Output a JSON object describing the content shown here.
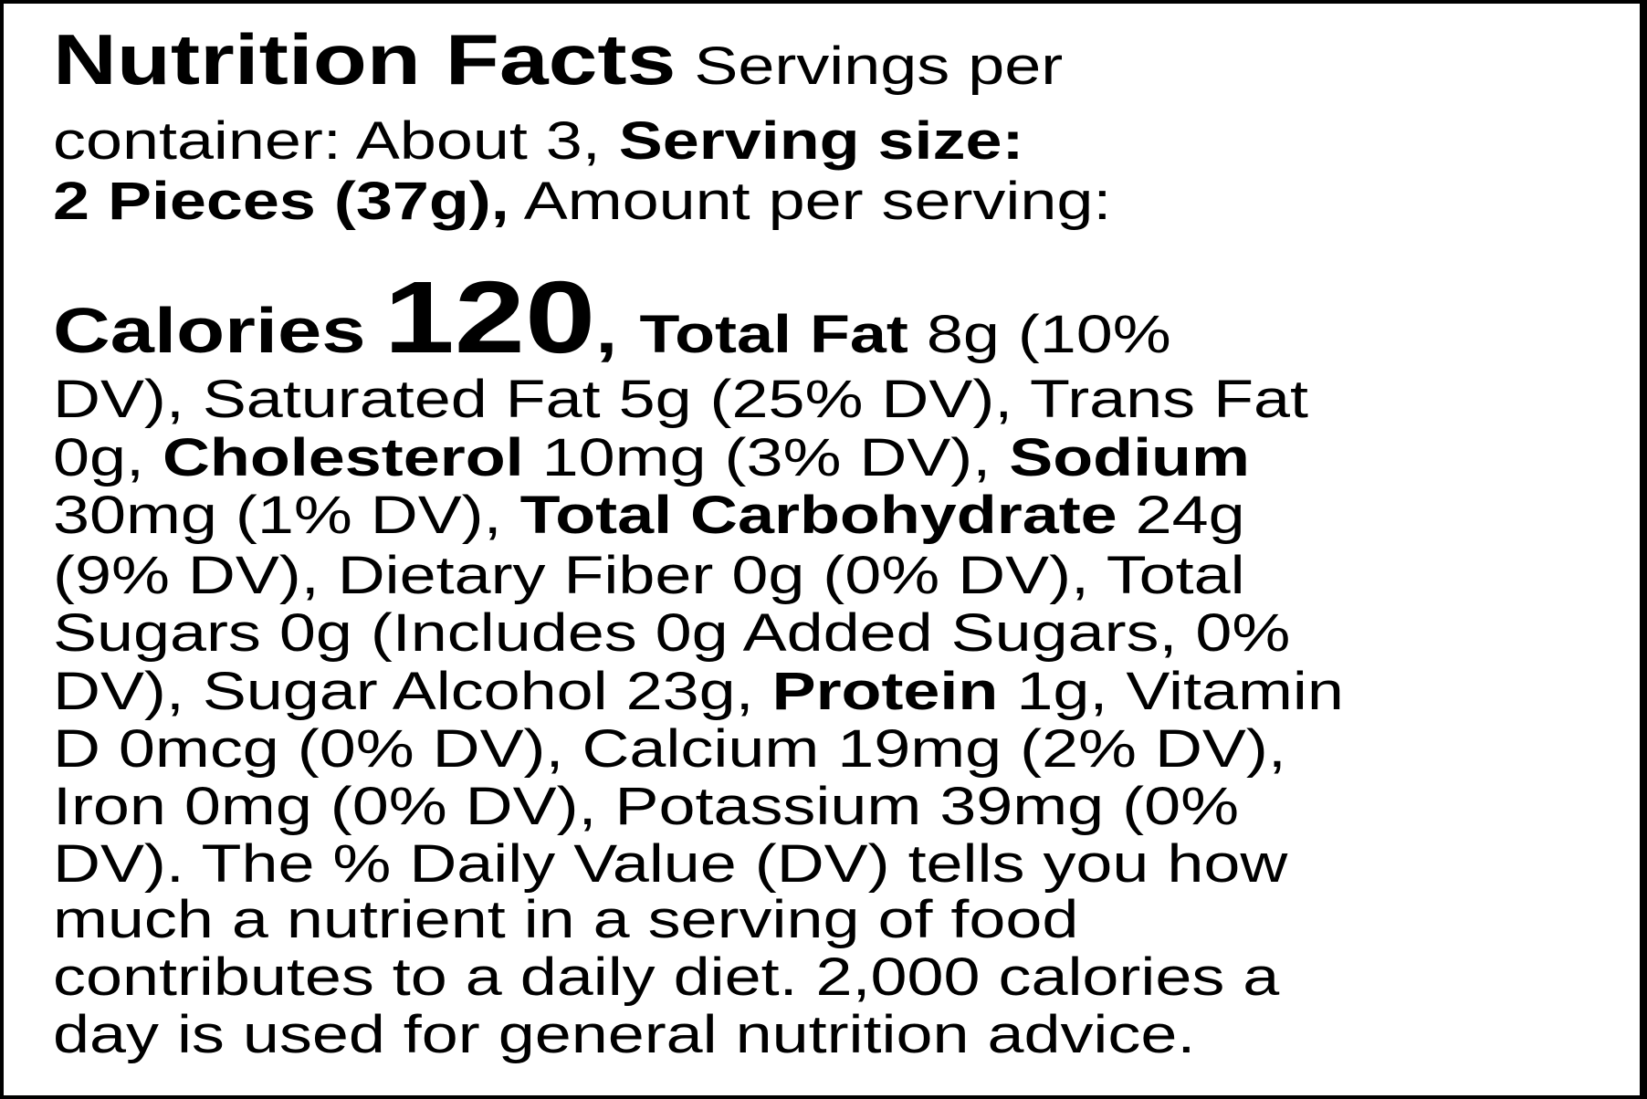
{
  "title": "Nutrition Facts",
  "servings_label": "Servings per",
  "servings_label2": "container: About 3,",
  "serving_size_label": "Serving size:",
  "serving_size_value": "2 Pieces (37g),",
  "amount_label": "Amount per serving:",
  "calories_label": "Calories",
  "calories_value": "120",
  "lines": {
    "l4a": "Total Fat",
    "l4b": "8g (10%",
    "l5": "DV), Saturated Fat 5g (25% DV), Trans Fat",
    "l6a": "0g,",
    "l6b": "Cholesterol",
    "l6c": "10mg (3% DV),",
    "l6d": "Sodium",
    "l7a": "30mg (1% DV),",
    "l7b": "Total Carbohydrate",
    "l7c": "24g",
    "l8": "(9% DV), Dietary Fiber 0g (0% DV), Total",
    "l9": "Sugars 0g (Includes 0g Added Sugars, 0%",
    "l10a": "DV), Sugar Alcohol 23g,",
    "l10b": "Protein",
    "l10c": "1g, Vitamin",
    "l11": "D 0mcg (0% DV), Calcium 19mg (2% DV),",
    "l12": "Iron 0mg (0% DV), Potassium 39mg (0%",
    "l13": "DV). The % Daily Value (DV) tells you how",
    "l14": "much a nutrient in a serving of food",
    "l15": "contributes to a daily diet. 2,000 calories a",
    "l16": "day is used for general nutrition advice."
  }
}
